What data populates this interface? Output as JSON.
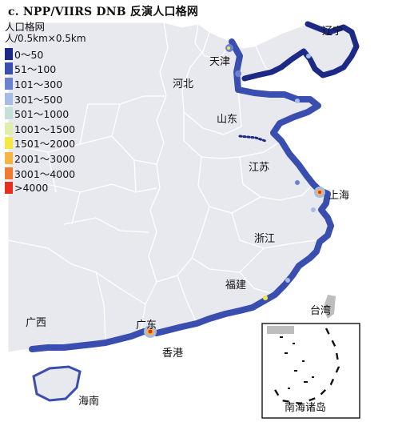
{
  "title": "c. NPP/VIIRS DNB 反演人口格网",
  "legend": {
    "title": "人口格网",
    "unit": "人/0.5km×0.5km",
    "classes": [
      {
        "label": "0～50",
        "color": "#1c2a86"
      },
      {
        "label": "51～100",
        "color": "#3a4eb0"
      },
      {
        "label": "101～300",
        "color": "#6a82d0"
      },
      {
        "label": "301～500",
        "color": "#a5bde6"
      },
      {
        "label": "501～1000",
        "color": "#c5e0da"
      },
      {
        "label": "1001～1500",
        "color": "#dfeea8"
      },
      {
        "label": "1501～2000",
        "color": "#f4e842"
      },
      {
        "label": "2001～3000",
        "color": "#f6b440"
      },
      {
        "label": "3001～4000",
        "color": "#ee7b2e"
      },
      {
        "label": ">4000",
        "color": "#e5301d"
      }
    ]
  },
  "places": {
    "liaoning": "辽宁",
    "tianjin": "天津",
    "hebei": "河北",
    "shandong": "山东",
    "jiangsu": "江苏",
    "shanghai": "上海",
    "zhejiang": "浙江",
    "fujian": "福建",
    "taiwan": "台湾",
    "guangxi": "广西",
    "guangdong": "广东",
    "hongkong": "香港",
    "hainan": "海南",
    "south_sea_islands": "南海诸岛"
  },
  "colors": {
    "land": "#e8e8ef",
    "border": "#ffffff",
    "sea": "#ffffff",
    "coast_dark": "#1c2a86",
    "coast_mid": "#3a4eb0",
    "taiwan": "#bdbdbd"
  }
}
